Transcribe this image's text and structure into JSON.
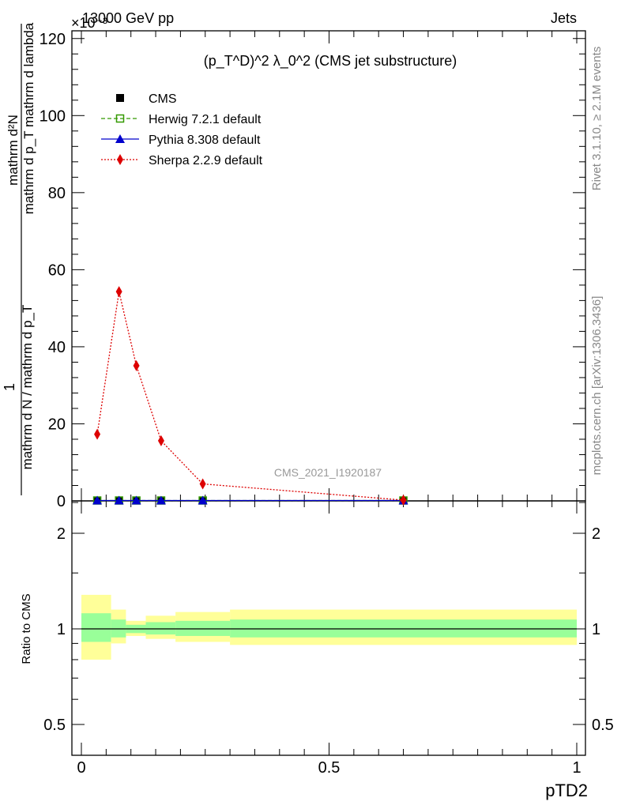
{
  "header": {
    "left": "13000 GeV pp",
    "right": "Jets",
    "multiplier": "×10⁻³"
  },
  "side_labels": {
    "rivet": "Rivet 3.1.10, ≥ 2.1M events",
    "mcplots": "mcplots.cern.ch [arXiv:1306.3436]"
  },
  "chart_data": {
    "type": "line",
    "title": "(p_T^D)^2 λ_0^2 (CMS jet substructure)",
    "analysis_label": "CMS_2021_I1920187",
    "xlabel": "pTD2",
    "ylabel": "1 / (mathrm d N / mathrm d p_T) · mathrm d²N / (mathrm d p_T mathrm d lambda)",
    "ylabel_parts": {
      "numerator_top": "mathrm d²N",
      "numerator_bottom": "mathrm d p_T mathrm d lambda",
      "one": "1",
      "denominator": "mathrm d N / mathrm d p_T"
    },
    "ratio_ylabel": "Ratio to CMS",
    "xlim": [
      0,
      1
    ],
    "ylim": [
      0,
      122
    ],
    "ratio_ylim": [
      0.4,
      2.5
    ],
    "ratio_log": true,
    "x_ticks": [
      0,
      0.5,
      1
    ],
    "x_tick_labels": [
      "0",
      "0.5",
      "1"
    ],
    "y_ticks": [
      0,
      20,
      40,
      60,
      80,
      100,
      120
    ],
    "y_tick_labels": [
      "0",
      "20",
      "40",
      "60",
      "80",
      "100",
      "120"
    ],
    "ratio_ticks": [
      0.5,
      1,
      2
    ],
    "ratio_tick_labels": [
      "0.5",
      "1",
      "2"
    ],
    "legend_position": "top-left",
    "series": [
      {
        "name": "CMS",
        "color": "#000000",
        "marker": "square",
        "x": [
          0.032,
          0.076,
          0.111,
          0.161,
          0.245,
          0.65
        ],
        "y": [
          0.1,
          0.1,
          0.1,
          0.1,
          0.1,
          0.1
        ]
      },
      {
        "name": "Herwig 7.2.1 default",
        "color": "#339900",
        "marker": "open-square",
        "line": "dashed",
        "x": [
          0.032,
          0.076,
          0.111,
          0.161,
          0.245,
          0.65
        ],
        "y": [
          0.1,
          0.1,
          0.1,
          0.1,
          0.1,
          0.1
        ]
      },
      {
        "name": "Pythia 8.308 default",
        "color": "#0000cc",
        "marker": "triangle",
        "line": "solid",
        "x": [
          0.032,
          0.076,
          0.111,
          0.161,
          0.245,
          0.65
        ],
        "y": [
          0.1,
          0.1,
          0.1,
          0.1,
          0.1,
          0.1
        ]
      },
      {
        "name": "Sherpa 2.2.9 default",
        "color": "#dd0000",
        "marker": "diamond",
        "line": "dotted",
        "x": [
          0.032,
          0.076,
          0.111,
          0.161,
          0.245,
          0.65
        ],
        "y": [
          17.3,
          54.3,
          35.1,
          15.6,
          4.4,
          0.2
        ]
      }
    ],
    "ratio_bands": {
      "bin_edges": [
        0,
        0.06,
        0.09,
        0.13,
        0.19,
        0.3,
        1.0
      ],
      "stat_low": [
        0.91,
        0.94,
        0.97,
        0.96,
        0.95,
        0.94
      ],
      "stat_high": [
        1.12,
        1.07,
        1.03,
        1.05,
        1.06,
        1.07
      ],
      "total_low": [
        0.8,
        0.9,
        0.95,
        0.93,
        0.91,
        0.89
      ],
      "total_high": [
        1.28,
        1.15,
        1.06,
        1.1,
        1.13,
        1.15
      ],
      "stat_color": "#99ff99",
      "total_color": "#ffff99"
    }
  }
}
